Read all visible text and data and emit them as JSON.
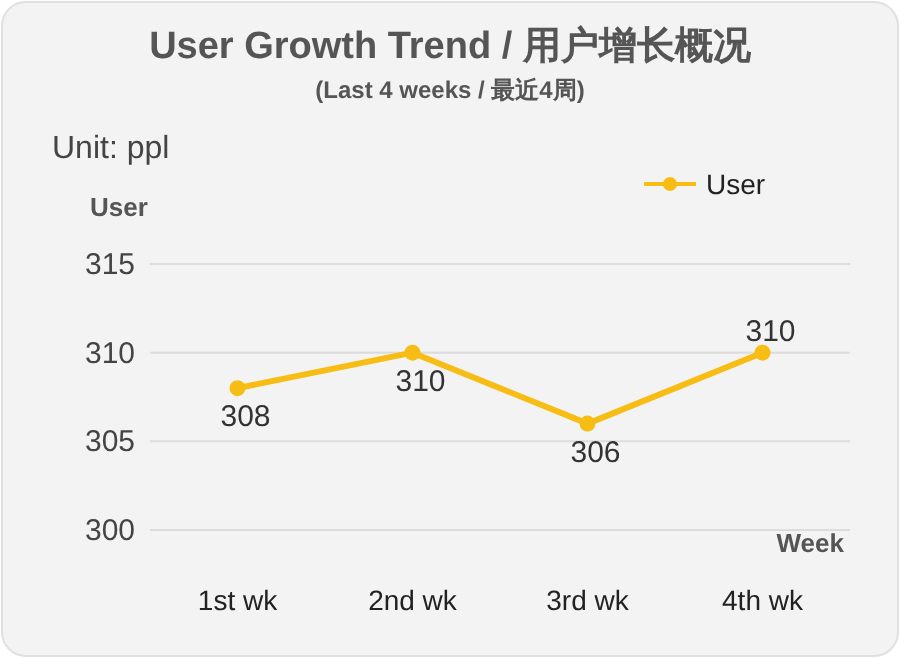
{
  "chart_data": {
    "type": "line",
    "title": "User Growth Trend / 用户增长概况",
    "subtitle": "(Last 4 weeks / 最近4周)",
    "annotations": [
      "Unit: ppl"
    ],
    "ylabel": "User",
    "xlabel": "Week",
    "categories": [
      "1st wk",
      "2nd wk",
      "3rd wk",
      "4th wk"
    ],
    "series": [
      {
        "name": "User",
        "color": "#f7bd14",
        "values": [
          308,
          310,
          306,
          310
        ],
        "value_labels": [
          "308",
          "310",
          "306",
          "310"
        ]
      }
    ],
    "ylim": [
      300,
      315
    ],
    "yticks": [
      300,
      305,
      310,
      315
    ],
    "grid": "y",
    "legend": "top right",
    "marker": "circle",
    "line_style": "solid"
  }
}
